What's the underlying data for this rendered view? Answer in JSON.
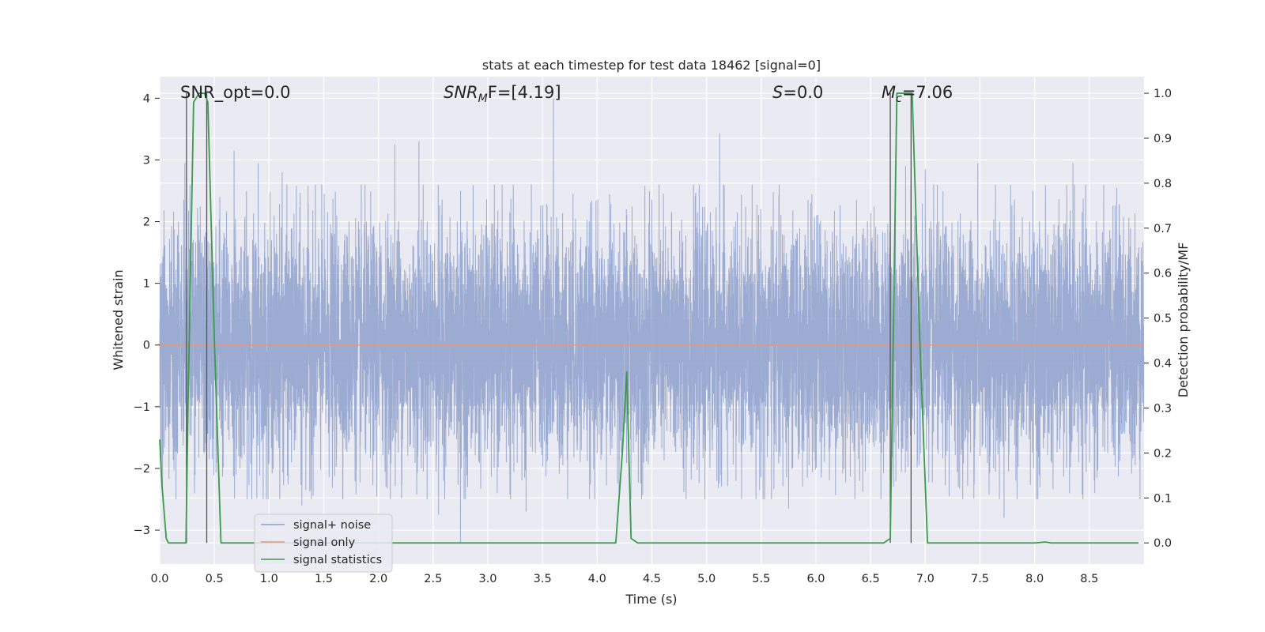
{
  "chart_data": {
    "type": "line",
    "title": "stats at each timestep for test data 18462 [signal=0]",
    "xlabel": "Time (s)",
    "ylabel": "Whitened strain",
    "ylabel_right": "Detection probability/MF",
    "xlim": [
      0.0,
      9.0
    ],
    "ylim": [
      -3.55,
      4.35
    ],
    "ylim_right": [
      -0.047,
      1.037
    ],
    "x_ticks": [
      "0.0",
      "0.5",
      "1.0",
      "1.5",
      "2.0",
      "2.5",
      "3.0",
      "3.5",
      "4.0",
      "4.5",
      "5.0",
      "5.5",
      "6.0",
      "6.5",
      "7.0",
      "7.5",
      "8.0",
      "8.5"
    ],
    "y_ticks": [
      "4",
      "3",
      "2",
      "1",
      "0",
      "−1",
      "−2",
      "−3"
    ],
    "y_tick_values": [
      4,
      3,
      2,
      1,
      0,
      -1,
      -2,
      -3
    ],
    "y_right_ticks": [
      "1.0",
      "0.9",
      "0.8",
      "0.7",
      "0.6",
      "0.5",
      "0.4",
      "0.3",
      "0.2",
      "0.1",
      "0.0"
    ],
    "y_right_tick_values": [
      1.0,
      0.9,
      0.8,
      0.7,
      0.6,
      0.5,
      0.4,
      0.3,
      0.2,
      0.1,
      0.0
    ],
    "grid": true,
    "legend_position": "lower-left",
    "annotations": {
      "snr_opt": "SNR_opt=0.0",
      "snr_mf_main": "SNR",
      "snr_mf_sub": "M",
      "snr_mf_rest": "F=[4.19]",
      "s_main": "S",
      "s_rest": "=0.0",
      "mc_main": "M",
      "mc_sub": "c",
      "mc_rest": "=7.06"
    },
    "series": [
      {
        "name": "signal+ noise",
        "color": "#8da0cb",
        "sample_rate_hz": 1000,
        "noise_std": 0.95,
        "peaks": [
          {
            "x": 0.23,
            "y": 2.95
          },
          {
            "x": 0.55,
            "y": 2.4
          },
          {
            "x": 0.68,
            "y": 3.15
          },
          {
            "x": 0.9,
            "y": 2.95
          },
          {
            "x": 1.12,
            "y": 2.8
          },
          {
            "x": 2.15,
            "y": 3.25
          },
          {
            "x": 2.37,
            "y": 3.3
          },
          {
            "x": 3.6,
            "y": 4.0
          },
          {
            "x": 5.12,
            "y": 3.43
          },
          {
            "x": 6.82,
            "y": 2.9
          },
          {
            "x": 7.0,
            "y": 2.85
          },
          {
            "x": 7.48,
            "y": 2.95
          },
          {
            "x": 8.35,
            "y": 2.95
          },
          {
            "x": 8.75,
            "y": 2.55
          },
          {
            "x": 1.3,
            "y": -2.6
          },
          {
            "x": 2.75,
            "y": -3.2
          },
          {
            "x": 3.35,
            "y": -2.7
          },
          {
            "x": 5.75,
            "y": -2.65
          },
          {
            "x": 7.72,
            "y": -2.8
          },
          {
            "x": 8.55,
            "y": -2.4
          },
          {
            "x": 2.55,
            "y": -2.75
          }
        ]
      },
      {
        "name": "signal only",
        "color": "#e5967a",
        "constant": 0.0
      },
      {
        "name": "signal statistics",
        "color": "#3a9a4a",
        "axis": "right",
        "x": [
          0.0,
          0.02,
          0.06,
          0.08,
          0.24,
          0.26,
          0.31,
          0.36,
          0.41,
          0.44,
          0.5,
          0.56,
          4.17,
          4.23,
          4.27,
          4.31,
          4.37,
          6.62,
          6.68,
          6.74,
          6.8,
          6.88,
          6.95,
          7.02,
          8.0,
          8.1,
          8.15,
          8.95
        ],
        "y": [
          0.23,
          0.13,
          0.01,
          0.0,
          0.0,
          0.32,
          0.98,
          1.0,
          1.0,
          0.98,
          0.45,
          0.0,
          0.0,
          0.2,
          0.38,
          0.01,
          0.0,
          0.0,
          0.01,
          1.0,
          1.0,
          1.0,
          0.45,
          0.0,
          0.0,
          0.002,
          0.0,
          0.0
        ]
      }
    ],
    "vertical_markers": {
      "color": "#555555",
      "x": [
        0.245,
        0.43,
        6.68,
        6.87
      ],
      "top_y_right": 1.0,
      "bottom_y_right": 0.0
    }
  },
  "legend": {
    "items": [
      "signal+ noise",
      "signal only",
      "signal statistics"
    ],
    "colors": [
      "#8da0cb",
      "#e5967a",
      "#3a9a4a"
    ]
  },
  "colors": {
    "plot_background": "#eaeaf2",
    "grid": "#ffffff",
    "text": "#262626"
  }
}
